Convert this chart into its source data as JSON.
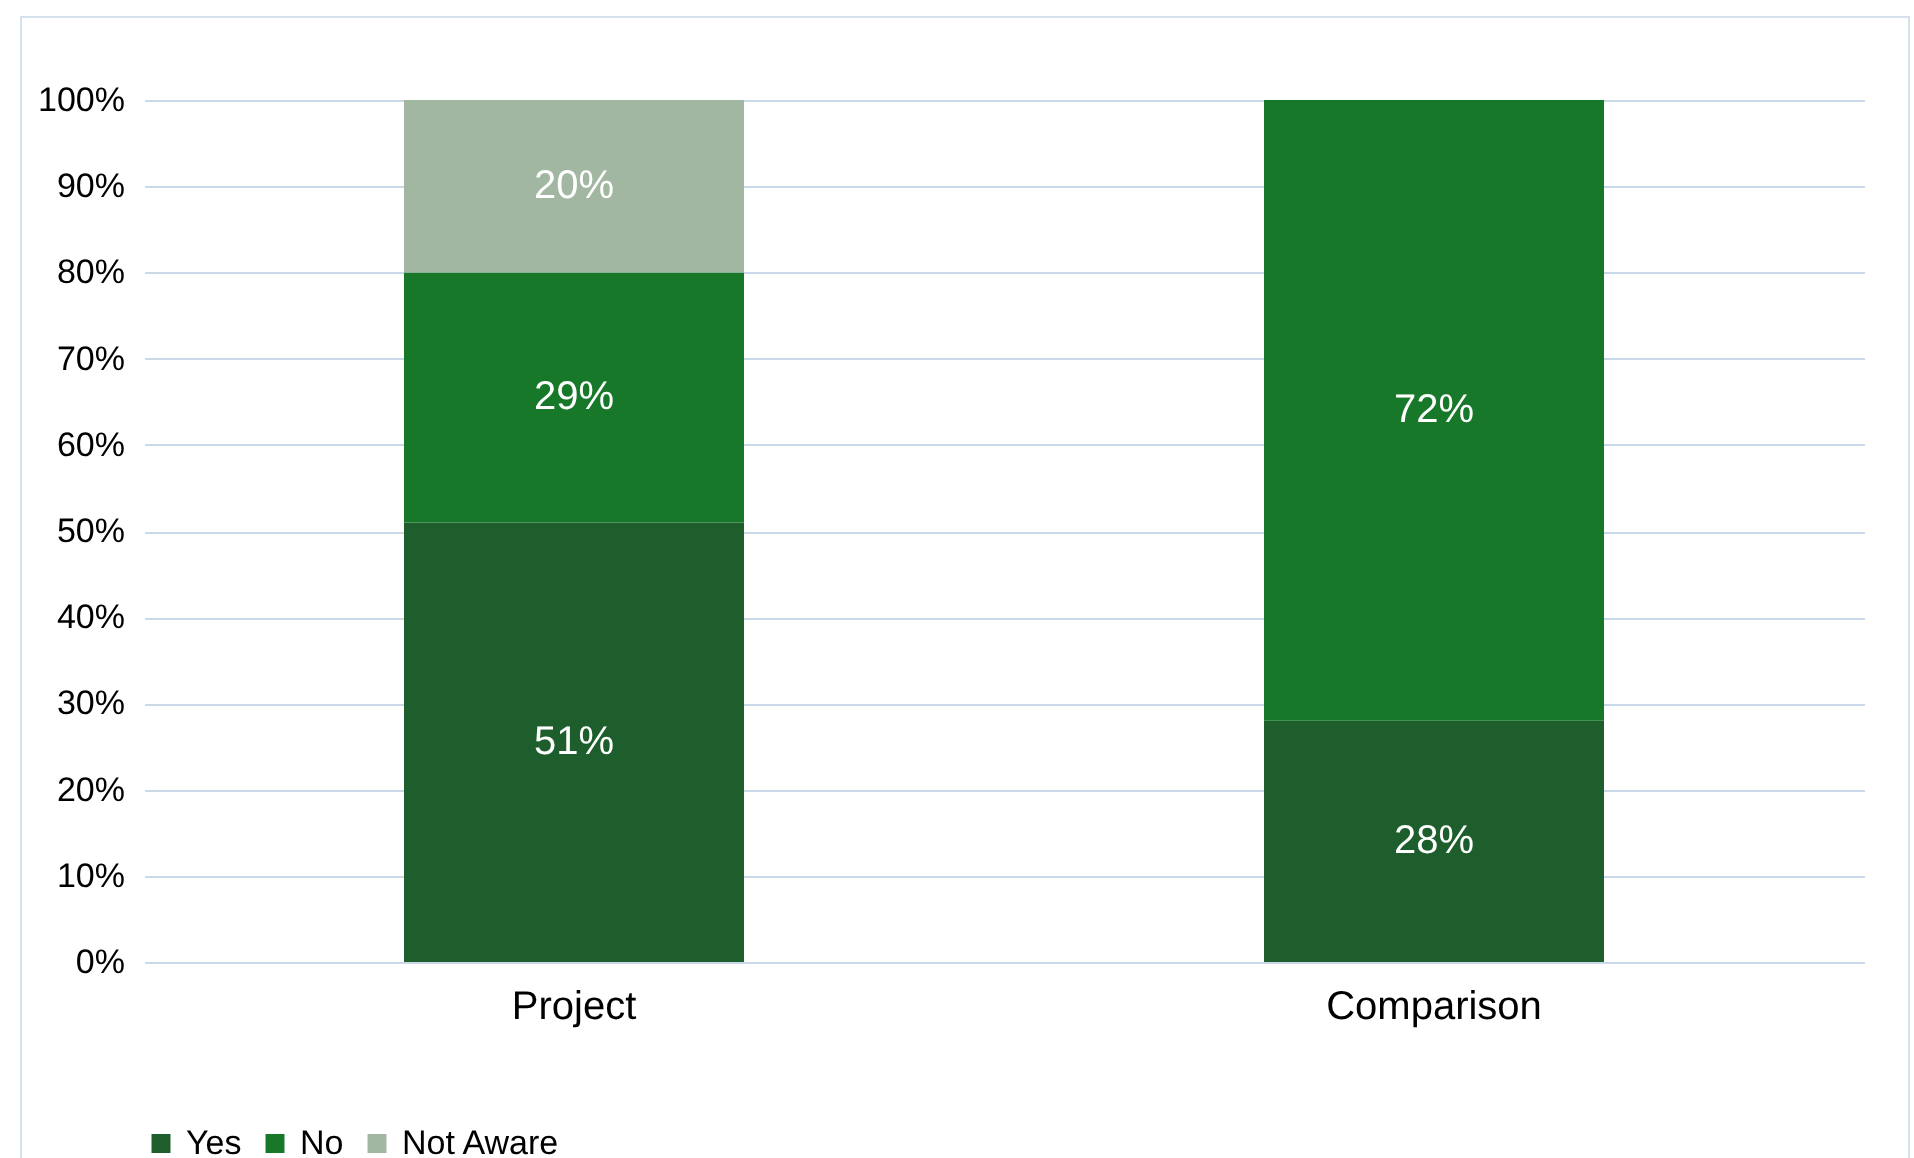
{
  "chart_data": {
    "type": "bar",
    "stacked": true,
    "categories": [
      "Project",
      "Comparison"
    ],
    "series": [
      {
        "name": "Yes",
        "color": "#1d5e2c",
        "values": [
          51,
          28
        ],
        "value_labels": [
          "51%",
          "28%"
        ]
      },
      {
        "name": "No",
        "color": "#17782a",
        "values": [
          29,
          72
        ],
        "value_labels": [
          "29%",
          "72%"
        ]
      },
      {
        "name": "Not Aware",
        "color": "#a2b7a2",
        "values": [
          20,
          null
        ],
        "value_labels": [
          "20%",
          null
        ]
      }
    ],
    "ylim": [
      0,
      100
    ],
    "yticks": [
      {
        "value": 0,
        "label": "0%"
      },
      {
        "value": 10,
        "label": "10%"
      },
      {
        "value": 20,
        "label": "20%"
      },
      {
        "value": 30,
        "label": "30%"
      },
      {
        "value": 40,
        "label": "40%"
      },
      {
        "value": 50,
        "label": "50%"
      },
      {
        "value": 60,
        "label": "60%"
      },
      {
        "value": 70,
        "label": "70%"
      },
      {
        "value": 80,
        "label": "80%"
      },
      {
        "value": 90,
        "label": "90%"
      },
      {
        "value": 100,
        "label": "100%"
      }
    ],
    "grid": "y",
    "legend": "bottom"
  }
}
